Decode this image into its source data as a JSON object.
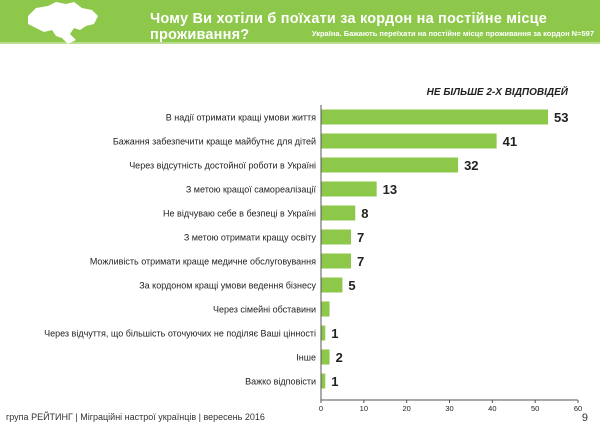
{
  "header": {
    "title": "Чому Ви хотіли б поїхати за кордон на постійне місце проживання?",
    "subtitle": "Україна. Бажають переїхати на постійне місце проживання за кордон N=597",
    "logo_icon": "ukraine-map-icon"
  },
  "note": "НЕ БІЛЬШЕ 2-Х ВІДПОВІДЕЙ",
  "chart_data": {
    "type": "bar",
    "orientation": "horizontal",
    "categories": [
      "В надії отримати кращі умови життя",
      "Бажання забезпечити краще майбутнє для дітей",
      "Через відсутність достойної роботи в Україні",
      "З метою кращої самореалізації",
      "Не відчуваю себе в безпеці в Україні",
      "З метою отримати кращу освіту",
      "Можливість отримати краще медичне обслуговування",
      "За кордоном кращі умови ведення бізнесу",
      "Через сімейні обставини",
      "Через відчуття, що більшість оточуючих не поділяє Ваші цінності",
      "Інше",
      "Важко відповісти"
    ],
    "values": [
      53,
      41,
      32,
      13,
      8,
      7,
      7,
      5,
      2,
      1,
      2,
      1
    ],
    "data_labels": [
      "53",
      "41",
      "32",
      "13",
      "8",
      "7",
      "7",
      "5",
      "",
      "1",
      "2",
      "1"
    ],
    "xlim": [
      0,
      60
    ],
    "xticks": [
      "0",
      "10",
      "20",
      "30",
      "40",
      "50",
      "60"
    ],
    "bar_color": "#8dc84b",
    "grid": false
  },
  "footer": {
    "text": "група РЕЙТИНГ  |  Міграційні настрої українців  |  вересень 2016",
    "page": "9"
  }
}
